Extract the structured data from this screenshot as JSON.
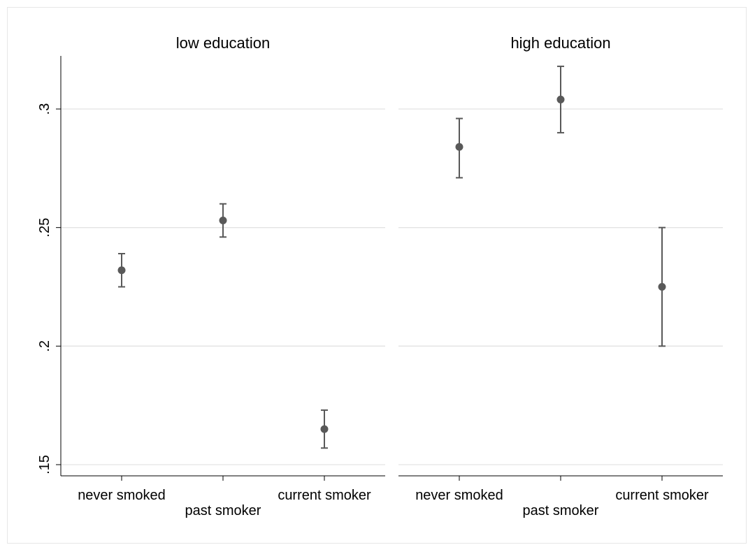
{
  "chart_data": {
    "type": "scatter",
    "subtype": "point-estimate-with-confidence-interval",
    "y_ticks": [
      0.15,
      0.2,
      0.25,
      0.3
    ],
    "y_tick_labels": [
      ".15",
      ".2",
      ".25",
      ".3"
    ],
    "ylim": [
      0.146,
      0.322
    ],
    "grid": true,
    "categories": [
      "never smoked",
      "past smoker",
      "current smoker"
    ],
    "panels": [
      {
        "title": "low education",
        "points": [
          {
            "category": "never smoked",
            "y": 0.232,
            "lower": 0.225,
            "upper": 0.239
          },
          {
            "category": "past smoker",
            "y": 0.253,
            "lower": 0.246,
            "upper": 0.26
          },
          {
            "category": "current smoker",
            "y": 0.165,
            "lower": 0.157,
            "upper": 0.173
          }
        ]
      },
      {
        "title": "high education",
        "points": [
          {
            "category": "never smoked",
            "y": 0.284,
            "lower": 0.271,
            "upper": 0.296
          },
          {
            "category": "past smoker",
            "y": 0.304,
            "lower": 0.29,
            "upper": 0.318
          },
          {
            "category": "current smoker",
            "y": 0.225,
            "lower": 0.2,
            "upper": 0.25
          }
        ]
      }
    ],
    "colors": {
      "marker": "#595959",
      "gridline": "#e3e3e3",
      "axis": "#000000"
    }
  }
}
